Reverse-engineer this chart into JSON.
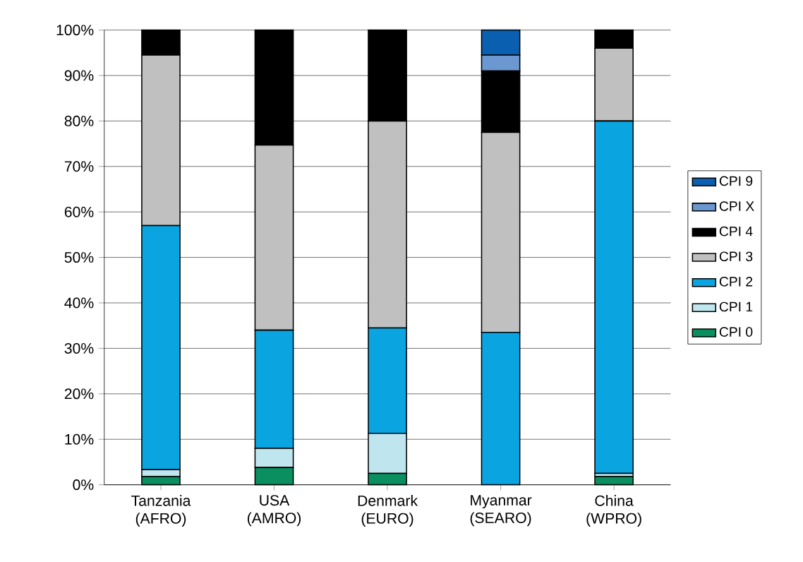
{
  "chart_data": {
    "type": "bar",
    "stacked": true,
    "categories": [
      "Tanzania (AFRO)",
      "USA (AMRO)",
      "Denmark (EURO)",
      "Myanmar (SEARO)",
      "China (WPRO)"
    ],
    "series": [
      {
        "name": "CPI 0",
        "color": "#0a9060",
        "values": [
          1.8,
          3.8,
          2.5,
          0,
          1.8
        ]
      },
      {
        "name": "CPI 1",
        "color": "#bfe6ef",
        "values": [
          1.5,
          4.2,
          8.8,
          0,
          0.7
        ]
      },
      {
        "name": "CPI 2",
        "color": "#0aa5e0",
        "values": [
          53.7,
          26,
          23.2,
          33.5,
          77.5
        ]
      },
      {
        "name": "CPI 3",
        "color": "#c0c0c0",
        "values": [
          37.5,
          40.7,
          45.5,
          44,
          16
        ]
      },
      {
        "name": "CPI 4",
        "color": "#000000",
        "values": [
          5.5,
          25.3,
          20,
          13.5,
          4
        ]
      },
      {
        "name": "CPI X",
        "color": "#6b98d0",
        "values": [
          0,
          0,
          0,
          3.5,
          0
        ]
      },
      {
        "name": "CPI 9",
        "color": "#0a5fb0",
        "values": [
          0,
          0,
          0,
          5.5,
          0
        ]
      }
    ],
    "ylim": [
      0,
      100
    ],
    "yticks": [
      {
        "value": 0,
        "label": "0%"
      },
      {
        "value": 10,
        "label": "10%"
      },
      {
        "value": 20,
        "label": "20%"
      },
      {
        "value": 30,
        "label": "30%"
      },
      {
        "value": 40,
        "label": "40%"
      },
      {
        "value": 50,
        "label": "50%"
      },
      {
        "value": 60,
        "label": "60%"
      },
      {
        "value": 70,
        "label": "70%"
      },
      {
        "value": 80,
        "label": "80%"
      },
      {
        "value": 90,
        "label": "90%"
      },
      {
        "value": 100,
        "label": "100%"
      }
    ],
    "grid": "y",
    "legend": "right"
  }
}
